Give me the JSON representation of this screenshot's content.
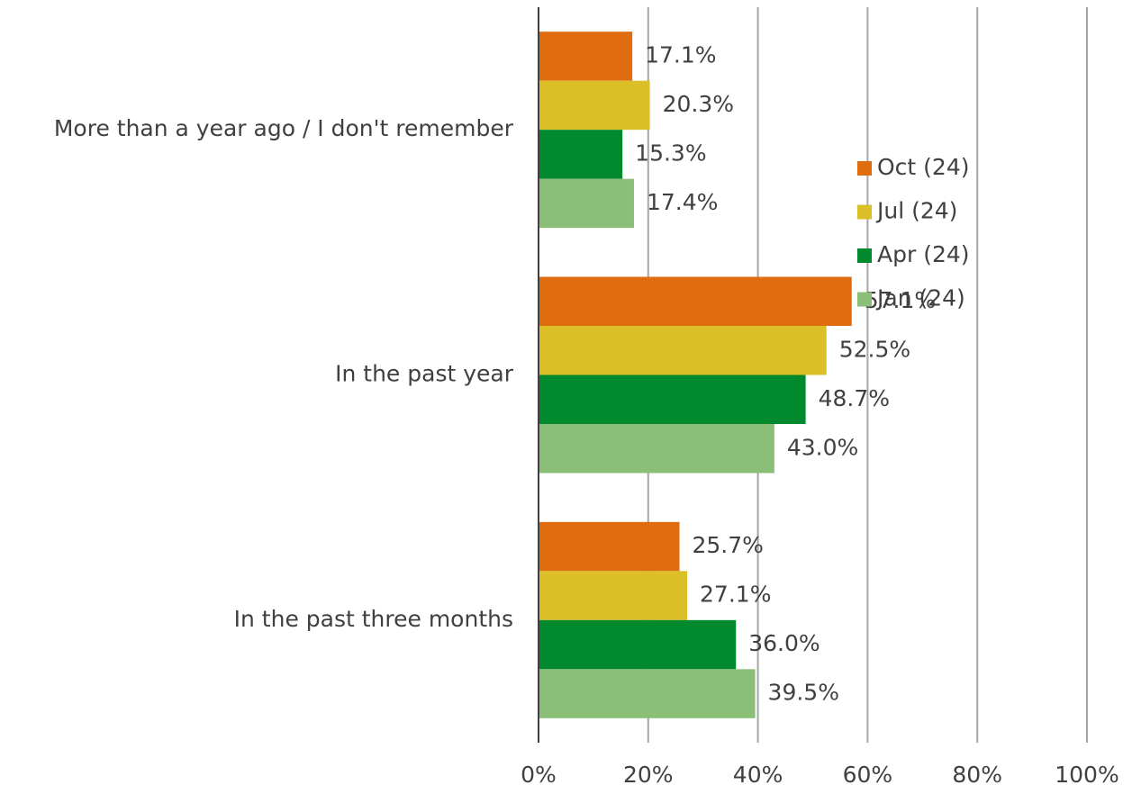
{
  "chart_data": {
    "type": "bar",
    "orientation": "horizontal",
    "categories": [
      "More than a year ago / I don't remember",
      "In the past year",
      "In the past three months"
    ],
    "series": [
      {
        "name": "Oct (24)",
        "color": "#e06c10",
        "values": [
          17.1,
          57.1,
          25.7
        ],
        "value_labels": [
          "17.1%",
          "57.1%",
          "25.7%"
        ]
      },
      {
        "name": "Jul (24)",
        "color": "#dcbf27",
        "values": [
          20.3,
          52.5,
          27.1
        ],
        "value_labels": [
          "20.3%",
          "52.5%",
          "27.1%"
        ]
      },
      {
        "name": "Apr (24)",
        "color": "#00892d",
        "values": [
          15.3,
          48.7,
          36.0
        ],
        "value_labels": [
          "15.3%",
          "48.7%",
          "36.0%"
        ]
      },
      {
        "name": "Jan (24)",
        "color": "#8bbf78",
        "values": [
          17.4,
          43.0,
          39.5
        ],
        "value_labels": [
          "17.4%",
          "43.0%",
          "39.5%"
        ]
      }
    ],
    "xlim": [
      0,
      100
    ],
    "xticks": [
      {
        "value": 0,
        "label": "0%"
      },
      {
        "value": 20,
        "label": "20%"
      },
      {
        "value": 40,
        "label": "40%"
      },
      {
        "value": 60,
        "label": "60%"
      },
      {
        "value": 80,
        "label": "80%"
      },
      {
        "value": 100,
        "label": "100%"
      }
    ],
    "grid": true,
    "legend_position": "right"
  }
}
